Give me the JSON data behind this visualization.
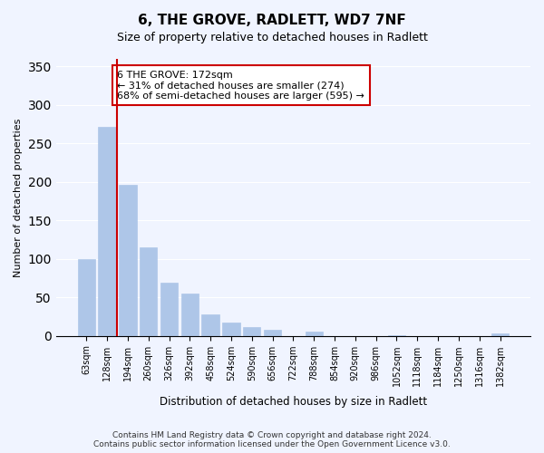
{
  "title": "6, THE GROVE, RADLETT, WD7 7NF",
  "subtitle": "Size of property relative to detached houses in Radlett",
  "xlabel": "Distribution of detached houses by size in Radlett",
  "ylabel": "Number of detached properties",
  "bar_labels": [
    "63sqm",
    "128sqm",
    "194sqm",
    "260sqm",
    "326sqm",
    "392sqm",
    "458sqm",
    "524sqm",
    "590sqm",
    "656sqm",
    "722sqm",
    "788sqm",
    "854sqm",
    "920sqm",
    "986sqm",
    "1052sqm",
    "1118sqm",
    "1184sqm",
    "1250sqm",
    "1316sqm",
    "1382sqm"
  ],
  "bar_values": [
    100,
    272,
    196,
    115,
    69,
    55,
    28,
    17,
    11,
    8,
    0,
    5,
    0,
    0,
    0,
    1,
    0,
    0,
    0,
    0,
    3
  ],
  "bar_color": "#aec6e8",
  "bar_edge_color": "#aec6e8",
  "vline_x": 1,
  "vline_color": "#cc0000",
  "ylim": [
    0,
    360
  ],
  "yticks": [
    0,
    50,
    100,
    150,
    200,
    250,
    300,
    350
  ],
  "annotation_title": "6 THE GROVE: 172sqm",
  "annotation_line1": "← 31% of detached houses are smaller (274)",
  "annotation_line2": "68% of semi-detached houses are larger (595) →",
  "annotation_box_color": "#ffffff",
  "annotation_box_edge": "#cc0000",
  "footer_line1": "Contains HM Land Registry data © Crown copyright and database right 2024.",
  "footer_line2": "Contains public sector information licensed under the Open Government Licence v3.0.",
  "background_color": "#f0f4ff"
}
